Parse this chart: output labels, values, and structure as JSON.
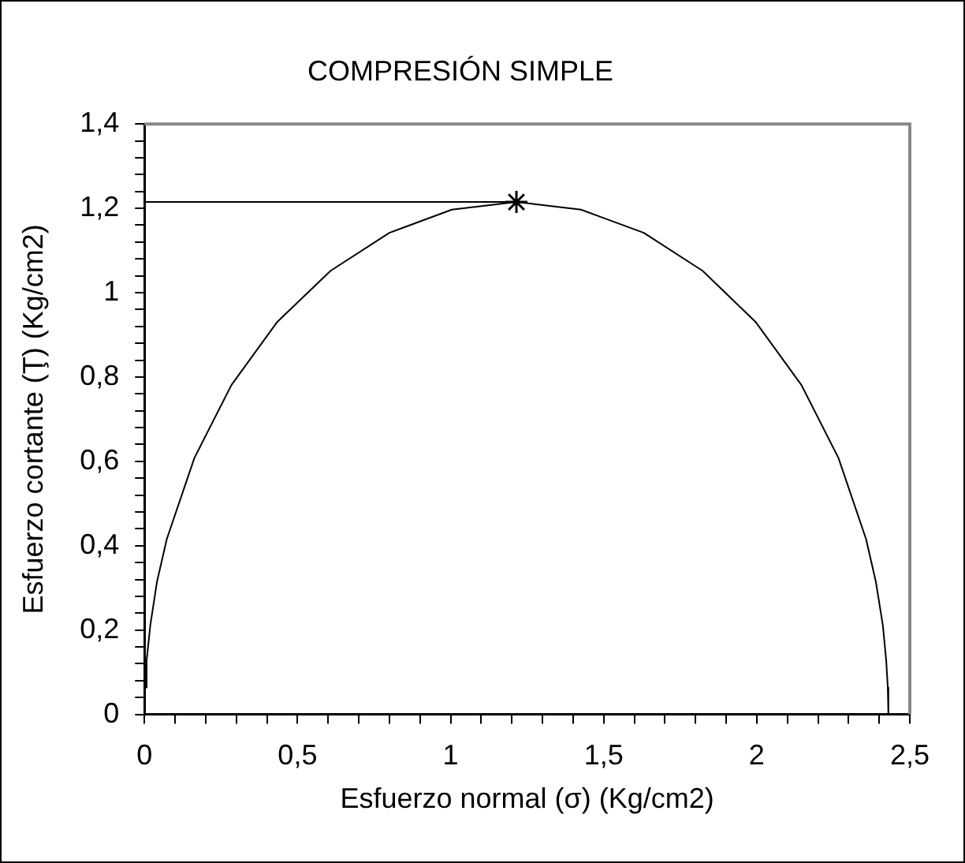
{
  "chart_data": {
    "type": "line",
    "title": "COMPRESIÓN SIMPLE",
    "xlabel": "Esfuerzo normal (σ) (Kg/cm2)",
    "ylabel": "Esfuerzo cortante (Ţ) (Kg/cm2)",
    "xlim": [
      0,
      2.5
    ],
    "ylim": [
      0,
      1.4
    ],
    "xticks": [
      0,
      {
        "value": 0.1,
        "label": null
      },
      {
        "value": 0.2,
        "label": null
      },
      {
        "value": 0.3,
        "label": null
      },
      {
        "value": 0.4,
        "label": null
      },
      {
        "value": 0.5,
        "label": "0,5"
      },
      {
        "value": 0.6,
        "label": null
      },
      {
        "value": 0.7,
        "label": null
      },
      {
        "value": 0.8,
        "label": null
      },
      {
        "value": 0.9,
        "label": null
      },
      1,
      {
        "value": 1.1,
        "label": null
      },
      {
        "value": 1.2,
        "label": null
      },
      {
        "value": 1.3,
        "label": null
      },
      {
        "value": 1.4,
        "label": null
      },
      {
        "value": 1.5,
        "label": "1,5"
      },
      {
        "value": 1.6,
        "label": null
      },
      {
        "value": 1.7,
        "label": null
      },
      {
        "value": 1.8,
        "label": null
      },
      {
        "value": 1.9,
        "label": null
      },
      2,
      {
        "value": 2.1,
        "label": null
      },
      {
        "value": 2.2,
        "label": null
      },
      {
        "value": 2.3,
        "label": null
      },
      {
        "value": 2.4,
        "label": null
      },
      {
        "value": 2.5,
        "label": "2,5"
      }
    ],
    "yticks": [
      0,
      {
        "value": 0.04,
        "label": null
      },
      {
        "value": 0.08,
        "label": null
      },
      {
        "value": 0.12,
        "label": null
      },
      {
        "value": 0.16,
        "label": null
      },
      {
        "value": 0.2,
        "label": "0,2"
      },
      {
        "value": 0.24,
        "label": null
      },
      {
        "value": 0.28,
        "label": null
      },
      {
        "value": 0.32,
        "label": null
      },
      {
        "value": 0.36,
        "label": null
      },
      {
        "value": 0.4,
        "label": "0,4"
      },
      {
        "value": 0.44,
        "label": null
      },
      {
        "value": 0.48,
        "label": null
      },
      {
        "value": 0.52,
        "label": null
      },
      {
        "value": 0.56,
        "label": null
      },
      {
        "value": 0.6,
        "label": "0,6"
      },
      {
        "value": 0.64,
        "label": null
      },
      {
        "value": 0.68,
        "label": null
      },
      {
        "value": 0.72,
        "label": null
      },
      {
        "value": 0.76,
        "label": null
      },
      {
        "value": 0.8,
        "label": "0,8"
      },
      {
        "value": 0.84,
        "label": null
      },
      {
        "value": 0.88,
        "label": null
      },
      {
        "value": 0.92,
        "label": null
      },
      {
        "value": 0.96,
        "label": null
      },
      1,
      {
        "value": 1.04,
        "label": null
      },
      {
        "value": 1.08,
        "label": null
      },
      {
        "value": 1.12,
        "label": null
      },
      {
        "value": 1.16,
        "label": null
      },
      {
        "value": 1.2,
        "label": "1,2"
      },
      {
        "value": 1.24,
        "label": null
      },
      {
        "value": 1.28,
        "label": null
      },
      {
        "value": 1.32,
        "label": null
      },
      {
        "value": 1.36,
        "label": null
      },
      {
        "value": 1.4,
        "label": "1,4"
      }
    ],
    "grid": false,
    "legend": false,
    "series": [
      {
        "marker": "none",
        "color": "#000000",
        "x": [
          0,
          0.002,
          0.007,
          0.019,
          0.041,
          0.073,
          0.163,
          0.284,
          0.434,
          0.608,
          0.8,
          1.004,
          1.215,
          1.426,
          1.631,
          1.823,
          1.996,
          2.146,
          2.267,
          2.357,
          2.389,
          2.412,
          2.423,
          2.428,
          2.43
        ],
        "values": [
          0,
          0.064,
          0.127,
          0.211,
          0.315,
          0.416,
          0.608,
          0.781,
          0.931,
          1.052,
          1.142,
          1.197,
          1.215,
          1.197,
          1.142,
          1.052,
          0.931,
          0.781,
          0.608,
          0.416,
          0.315,
          0.211,
          0.127,
          0.064,
          0
        ]
      },
      {
        "marker": "none",
        "color": "#000000",
        "x": [
          0,
          1.215
        ],
        "values": [
          1.215,
          1.215
        ]
      },
      {
        "type": "scatter",
        "marker": "cross",
        "color": "#000000",
        "x": [
          1.215
        ],
        "values": [
          1.215
        ]
      }
    ]
  }
}
